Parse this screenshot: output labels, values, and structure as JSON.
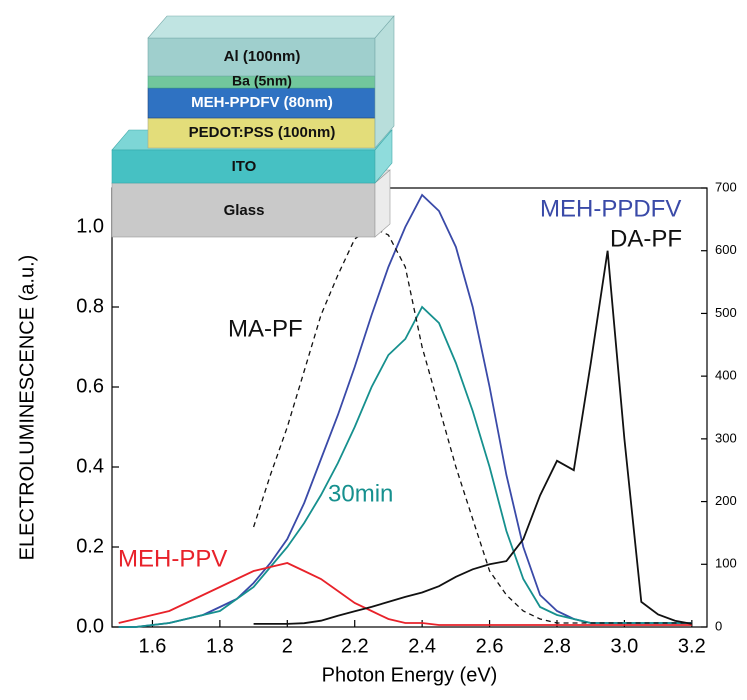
{
  "chart_data": {
    "type": "line",
    "xlabel": "Photon Energy (eV)",
    "ylabel": "ELECTROLUMINESCENCE (a.u.)",
    "x": [
      1.5,
      1.55,
      1.6,
      1.65,
      1.7,
      1.75,
      1.8,
      1.85,
      1.9,
      1.95,
      2.0,
      2.05,
      2.1,
      2.15,
      2.2,
      2.25,
      2.3,
      2.35,
      2.4,
      2.45,
      2.5,
      2.55,
      2.6,
      2.65,
      2.7,
      2.75,
      2.8,
      2.85,
      2.9,
      2.95,
      3.0,
      3.05,
      3.1,
      3.15,
      3.2
    ],
    "series": [
      {
        "name": "MEH-PPDFV",
        "color": "#3a4aa8",
        "values": [
          0,
          0,
          0.005,
          0.01,
          0.02,
          0.03,
          0.05,
          0.07,
          0.11,
          0.16,
          0.22,
          0.31,
          0.42,
          0.53,
          0.65,
          0.78,
          0.9,
          1.0,
          1.08,
          1.04,
          0.95,
          0.8,
          0.6,
          0.38,
          0.2,
          0.08,
          0.04,
          0.02,
          0.01,
          0.01,
          0.01,
          0.01,
          0.01,
          0.01,
          0.01
        ]
      },
      {
        "name": "30min",
        "color": "#16908e",
        "values": [
          0,
          0,
          0.005,
          0.01,
          0.02,
          0.03,
          0.04,
          0.07,
          0.1,
          0.15,
          0.2,
          0.26,
          0.33,
          0.41,
          0.5,
          0.6,
          0.68,
          0.72,
          0.8,
          0.76,
          0.66,
          0.54,
          0.4,
          0.24,
          0.12,
          0.05,
          0.03,
          0.02,
          0.01,
          0.01,
          0.01,
          0.01,
          0.01,
          0.01,
          0.01
        ]
      },
      {
        "name": "MEH-PPV",
        "color": "#e8222a",
        "values": [
          0.01,
          0.02,
          0.03,
          0.04,
          0.06,
          0.08,
          0.1,
          0.12,
          0.14,
          0.15,
          0.16,
          0.14,
          0.12,
          0.09,
          0.06,
          0.04,
          0.02,
          0.01,
          0.01,
          0.005,
          0.005,
          0.005,
          0.005,
          0.005,
          0.005,
          0.005,
          0.005,
          0.005,
          0.005,
          0.005,
          0.005,
          0.005,
          0.005,
          0.005,
          0.005
        ]
      },
      {
        "name": "MA-PF",
        "color": "#111111",
        "style": "dashed",
        "values": [
          null,
          null,
          null,
          null,
          null,
          null,
          null,
          null,
          0.25,
          0.38,
          0.5,
          0.64,
          0.78,
          0.88,
          0.97,
          1.0,
          0.98,
          0.9,
          0.7,
          0.55,
          0.4,
          0.27,
          0.14,
          0.08,
          0.04,
          0.02,
          0.01,
          0.01,
          0.01,
          0.01,
          0.01,
          0.01,
          0.01,
          0.01,
          0.01
        ]
      },
      {
        "name": "DA-PF",
        "color": "#111111",
        "axis": "y2",
        "values": [
          null,
          null,
          null,
          null,
          null,
          null,
          null,
          null,
          5,
          5,
          5,
          6,
          10,
          18,
          25,
          32,
          40,
          48,
          55,
          65,
          80,
          92,
          100,
          105,
          140,
          210,
          265,
          250,
          420,
          600,
          300,
          40,
          20,
          10,
          5
        ]
      }
    ],
    "xlim": [
      1.48,
      3.245
    ],
    "xticks": [
      1.6,
      1.8,
      2.0,
      2.2,
      2.4,
      2.6,
      2.8,
      {
        "value": 3,
        "label": "3.0"
      },
      3.2
    ],
    "ylim": [
      0,
      1.0975
    ],
    "yticks": [
      {
        "value": 0,
        "label": "0.0"
      },
      0.2,
      0.4,
      0.6,
      0.8,
      {
        "value": 1,
        "label": "1.0"
      }
    ],
    "y2lim": [
      0,
      700
    ],
    "y2ticks": [
      0,
      100,
      200,
      300,
      400,
      500,
      600,
      700
    ],
    "inset": {
      "layers": [
        "Al (100nm)",
        "Ba (5nm)",
        "MEH-PPDFV (80nm)",
        "PEDOT:PSS (100nm)",
        "ITO",
        "Glass"
      ]
    }
  }
}
